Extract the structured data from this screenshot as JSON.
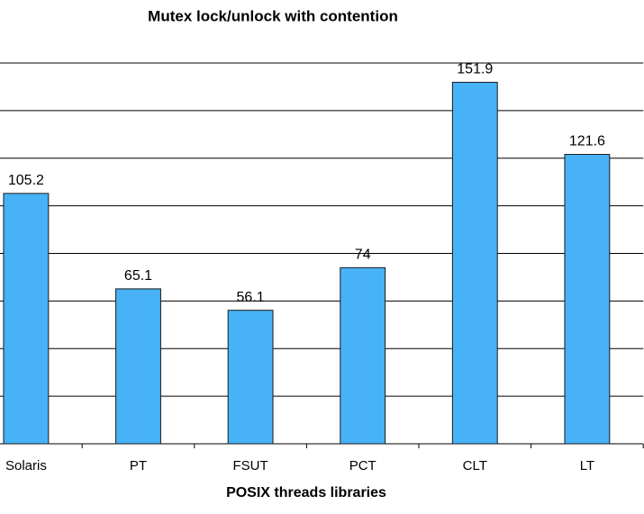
{
  "chart_data": {
    "type": "bar",
    "title": "Mutex lock/unlock with contention",
    "x_label": "POSIX threads libraries",
    "categories": [
      "Solaris",
      "PT",
      "FSUT",
      "PCT",
      "CLT",
      "LT"
    ],
    "values": [
      105.2,
      65.1,
      56.1,
      74,
      151.9,
      121.6
    ],
    "color": "#47b2f6",
    "ylim": [
      0,
      160
    ],
    "yticks": [
      20,
      40,
      60,
      80,
      100,
      120,
      140,
      160
    ],
    "grid": true
  }
}
